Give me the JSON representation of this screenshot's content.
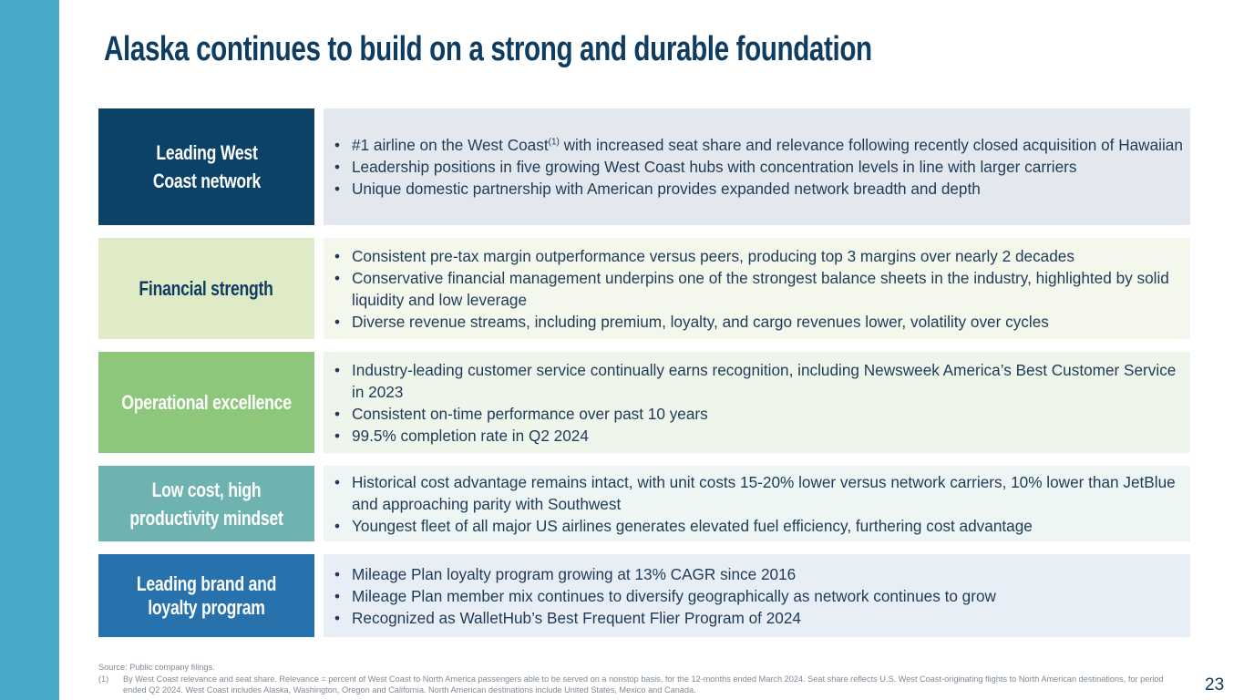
{
  "slide": {
    "title": "Alaska continues to build on a strong and durable foundation",
    "page_number": "23"
  },
  "rows": [
    {
      "label": "Leading West Coast network",
      "label_bg": "#0c4168",
      "label_color": "#ffffff",
      "content_bg": "#e3e8ee",
      "bullets": [
        {
          "text": "#1 airline on the West Coast",
          "sup": "(1)",
          "rest": " with increased seat share and relevance following recently closed acquisition of Hawaiian"
        },
        {
          "text": "Leadership positions in five growing West Coast hubs with concentration levels in line with larger carriers"
        },
        {
          "text": "Unique domestic partnership with American provides expanded network breadth and depth"
        }
      ]
    },
    {
      "label": "Financial strength",
      "label_bg": "#dfeac7",
      "label_color": "#0f3c61",
      "content_bg": "#f4f7ec",
      "bullets": [
        {
          "text": "Consistent pre-tax margin outperformance versus peers, producing top 3 margins over nearly 2 decades"
        },
        {
          "text": "Conservative financial management underpins one of the strongest balance sheets in the industry, highlighted by solid liquidity and low leverage"
        },
        {
          "text": "Diverse revenue streams, including premium, loyalty, and cargo revenues lower, volatility over cycles"
        }
      ]
    },
    {
      "label": "Operational excellence",
      "label_bg": "#8dc77b",
      "label_color": "#ffffff",
      "content_bg": "#eef5ea",
      "bullets": [
        {
          "text": "Industry-leading customer service continually earns recognition, including Newsweek America’s Best Customer Service in 2023"
        },
        {
          "text": "Consistent on-time performance over past 10 years"
        },
        {
          "text": "99.5% completion rate in Q2 2024"
        }
      ]
    },
    {
      "label": "Low cost, high productivity mindset",
      "label_bg": "#6fb3b0",
      "label_color": "#ffffff",
      "content_bg": "#edf5f5",
      "bullets": [
        {
          "text": "Historical cost advantage remains intact, with unit costs 15-20% lower versus network carriers, 10% lower than JetBlue and approaching parity with Southwest"
        },
        {
          "text": "Youngest fleet of all major US airlines generates elevated fuel efficiency, furthering cost advantage"
        }
      ]
    },
    {
      "label": "Leading brand and loyalty program",
      "label_bg": "#2772ac",
      "label_color": "#ffffff",
      "content_bg": "#e7eef5",
      "bullets": [
        {
          "text": "Mileage Plan loyalty program growing at 13% CAGR since 2016"
        },
        {
          "text": "Mileage Plan member mix continues to diversify geographically as network continues to grow"
        },
        {
          "text": "Recognized as WalletHub’s Best Frequent Flier Program of 2024"
        }
      ]
    }
  ],
  "footnotes": {
    "source": "Source: Public company filings.",
    "note_1_marker": "(1)",
    "note_1": "By West Coast relevance and seat share. Relevance = percent of West Coast to North America passengers able to be served on a nonstop basis, for the 12-months ended March 2024. Seat share reflects U.S. West Coast-originating flights to North American destinations, for period ended Q2 2024. West Coast includes Alaska, Washington, Oregon and California. North American destinations include United States, Mexico and Canada."
  }
}
